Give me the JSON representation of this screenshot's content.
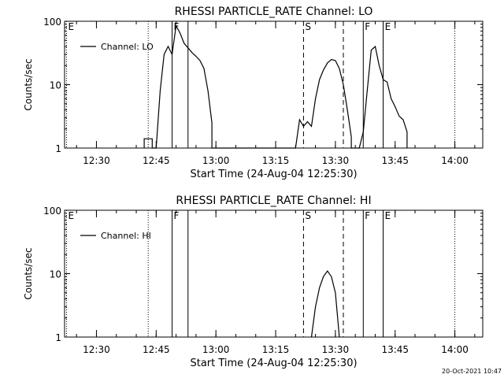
{
  "footer": {
    "timestamp": "20-Oct-2021 10:47"
  },
  "chart_data": [
    {
      "type": "line",
      "title": "RHESSI PARTICLE_RATE Channel: LO",
      "xlabel": "Start Time (24-Aug-04 12:25:30)",
      "ylabel": "Counts/sec",
      "yscale": "log",
      "ylim": [
        1,
        100
      ],
      "xlim": [
        "12:22",
        "14:07"
      ],
      "x_ticks": [
        "12:30",
        "12:45",
        "13:00",
        "13:15",
        "13:30",
        "13:45",
        "14:00"
      ],
      "y_ticks": [
        "1",
        "10",
        "100"
      ],
      "legend": {
        "placement": "top-left",
        "entries": [
          "Channel: LO"
        ]
      },
      "series": [
        {
          "name": "Channel: LO",
          "points": [
            [
              "12:42",
              1
            ],
            [
              "12:42",
              1.4
            ],
            [
              "12:44",
              1.4
            ],
            [
              "12:44",
              1
            ],
            [
              "12:45",
              1
            ],
            [
              "12:46",
              8
            ],
            [
              "12:47",
              30
            ],
            [
              "12:48",
              40
            ],
            [
              "12:49",
              30
            ],
            [
              "12:50",
              85
            ],
            [
              "12:51",
              65
            ],
            [
              "12:52",
              45
            ],
            [
              "12:53",
              38
            ],
            [
              "12:54",
              32
            ],
            [
              "12:55",
              28
            ],
            [
              "12:56",
              24
            ],
            [
              "12:57",
              18
            ],
            [
              "12:58",
              8
            ],
            [
              "12:59",
              2.5
            ],
            [
              "12:59",
              1
            ],
            [
              "13:20",
              1
            ],
            [
              "13:21",
              2.8
            ],
            [
              "13:22",
              2.2
            ],
            [
              "13:23",
              2.6
            ],
            [
              "13:24",
              2.2
            ],
            [
              "13:25",
              6
            ],
            [
              "13:26",
              12
            ],
            [
              "13:27",
              17
            ],
            [
              "13:28",
              22
            ],
            [
              "13:29",
              25
            ],
            [
              "13:30",
              24
            ],
            [
              "13:31",
              18
            ],
            [
              "13:32",
              10
            ],
            [
              "13:33",
              4
            ],
            [
              "13:34",
              1.5
            ],
            [
              "13:34",
              1
            ],
            [
              "13:36",
              1
            ],
            [
              "13:37",
              1.8
            ],
            [
              "13:38",
              8
            ],
            [
              "13:39",
              35
            ],
            [
              "13:40",
              40
            ],
            [
              "13:41",
              20
            ],
            [
              "13:42",
              12
            ],
            [
              "13:43",
              11
            ],
            [
              "13:44",
              6
            ],
            [
              "13:45",
              4.5
            ],
            [
              "13:46",
              3.2
            ],
            [
              "13:47",
              2.8
            ],
            [
              "13:48",
              1.8
            ],
            [
              "13:48",
              1
            ]
          ]
        }
      ],
      "markers": [
        {
          "label": "E",
          "time": "12:22:30",
          "style": "dotted"
        },
        {
          "label": "",
          "time": "12:43",
          "style": "dotted"
        },
        {
          "label": "F",
          "time": "12:49",
          "style": "solid"
        },
        {
          "label": "",
          "time": "12:53",
          "style": "solid"
        },
        {
          "label": "S",
          "time": "13:22",
          "style": "dashed"
        },
        {
          "label": "",
          "time": "13:32",
          "style": "dashed"
        },
        {
          "label": "F",
          "time": "13:37",
          "style": "solid"
        },
        {
          "label": "E",
          "time": "13:42",
          "style": "dotted"
        },
        {
          "label": "",
          "time": "13:42",
          "style": "solid"
        },
        {
          "label": "",
          "time": "14:00",
          "style": "dotted"
        }
      ]
    },
    {
      "type": "line",
      "title": "RHESSI PARTICLE_RATE Channel: HI",
      "xlabel": "Start Time (24-Aug-04 12:25:30)",
      "ylabel": "Counts/sec",
      "yscale": "log",
      "ylim": [
        1,
        100
      ],
      "xlim": [
        "12:22",
        "14:07"
      ],
      "x_ticks": [
        "12:30",
        "12:45",
        "13:00",
        "13:15",
        "13:30",
        "13:45",
        "14:00"
      ],
      "y_ticks": [
        "1",
        "10",
        "100"
      ],
      "legend": {
        "placement": "top-left",
        "entries": [
          "Channel: HI"
        ]
      },
      "series": [
        {
          "name": "Channel: HI",
          "points": [
            [
              "13:24",
              1
            ],
            [
              "13:25",
              3
            ],
            [
              "13:26",
              6
            ],
            [
              "13:27",
              9
            ],
            [
              "13:28",
              11
            ],
            [
              "13:29",
              9
            ],
            [
              "13:30",
              5
            ],
            [
              "13:31",
              1
            ]
          ]
        }
      ],
      "markers": [
        {
          "label": "E",
          "time": "12:22:30",
          "style": "dotted"
        },
        {
          "label": "",
          "time": "12:43",
          "style": "dotted"
        },
        {
          "label": "F",
          "time": "12:49",
          "style": "solid"
        },
        {
          "label": "",
          "time": "12:53",
          "style": "solid"
        },
        {
          "label": "S",
          "time": "13:22",
          "style": "dashed"
        },
        {
          "label": "",
          "time": "13:32",
          "style": "dashed"
        },
        {
          "label": "F",
          "time": "13:37",
          "style": "solid"
        },
        {
          "label": "E",
          "time": "13:42",
          "style": "dotted"
        },
        {
          "label": "",
          "time": "13:42",
          "style": "solid"
        },
        {
          "label": "",
          "time": "14:00",
          "style": "dotted"
        }
      ]
    }
  ]
}
